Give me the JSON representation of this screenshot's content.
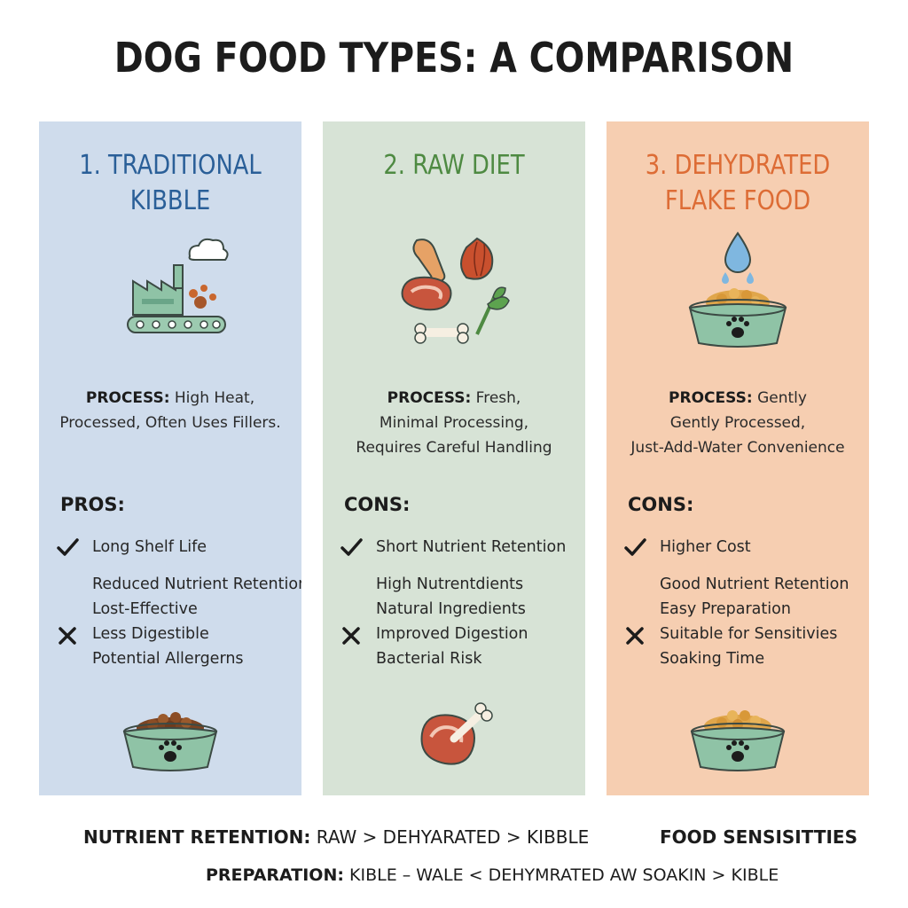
{
  "title": "DOG FOOD TYPES: A COMPARISON",
  "columns": [
    {
      "title_lines": [
        "1. TRADITIONAL",
        "KIBBLE"
      ],
      "process_label": "PROCESS:",
      "process_lines": [
        " High Heat,",
        "Processed, Often Uses Fillers."
      ],
      "section_label": "PROS:",
      "lines": [
        "Long Shelf Life",
        "Reduced Nutrient Retention",
        "Lost-Effective",
        "Less Digestible",
        "Potential Allergerns"
      ],
      "top_icon": "factory-conveyor-icon",
      "bottom_icon": "kibble-bowl-icon"
    },
    {
      "title_lines": [
        "2. RAW DIET"
      ],
      "process_label": "PROCESS:",
      "process_lines": [
        " Fresh,",
        "Minimal Processing,",
        "Requires Careful Handling"
      ],
      "section_label": "CONS:",
      "lines": [
        "Short Nutrient Retention",
        "High Nutrentdients",
        "Natural Ingredients",
        "Improved Digestion",
        "Bacterial Risk"
      ],
      "top_icon": "raw-meat-vegetables-icon",
      "bottom_icon": "raw-meat-bone-icon"
    },
    {
      "title_lines": [
        "3. DEHYDRATED",
        "FLAKE FOOD"
      ],
      "process_label": "PROCESS:",
      "process_lines": [
        " Gently",
        "Gently Processed,",
        "Just-Add-Water Convenience"
      ],
      "section_label": "CONS:",
      "lines": [
        "Higher Cost",
        "Good Nutrient Retention",
        "Easy Preparation",
        "Suitable for Sensitivies",
        "Soaking Time"
      ],
      "top_icon": "water-drop-bowl-icon",
      "bottom_icon": "flake-bowl-icon"
    }
  ],
  "footer": {
    "nutrient_label": "NUTRIENT RETENTION:",
    "nutrient_value": " RAW > DEHYARATED > KIBBLE",
    "side_note": "FOOD SENSISITTIES",
    "prep_label": "PREPARATION:",
    "prep_value": "  KIBLE – WALE < DEHYMRATED AW SOAKIN > KIBLE"
  },
  "colors": {
    "kibble_panel": "#cfdcec",
    "raw_panel": "#d7e3d6",
    "flake_panel": "#f6ceb1",
    "kibble_title": "#2a5f98",
    "raw_title": "#4e8a42",
    "flake_title": "#dd6c35"
  }
}
